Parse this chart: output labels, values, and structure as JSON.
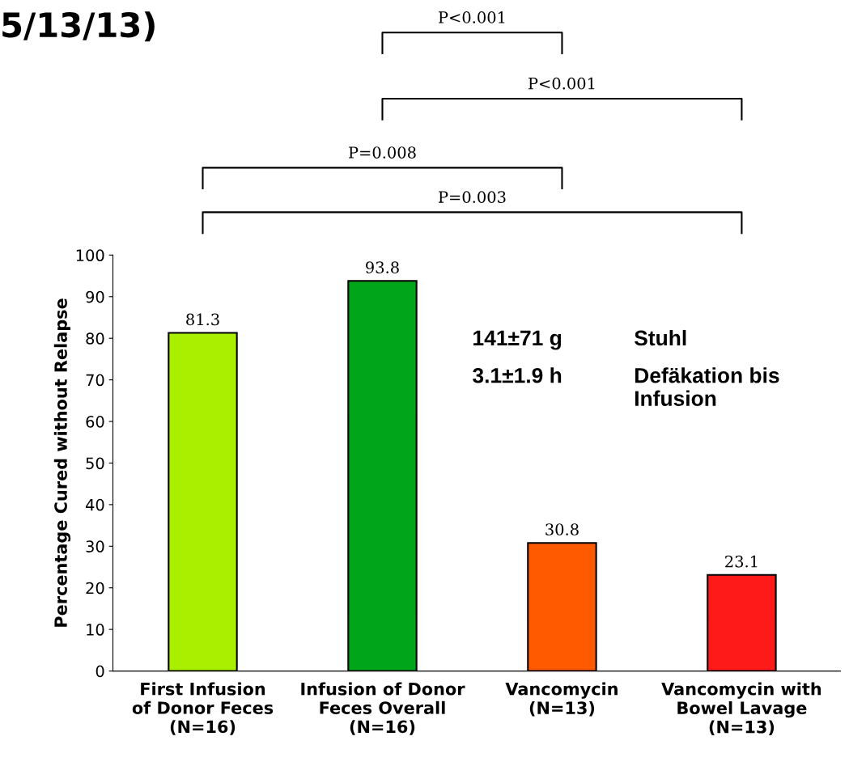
{
  "chart_data": {
    "type": "bar",
    "ylabel": "Percentage Cured without Relapse",
    "categories": [
      "First Infusion\nof Donor Feces\n(N=16)",
      "Infusion of Donor\nFeces Overall\n(N=16)",
      "Vancomycin\n(N=13)",
      "Vancomycin with\nBowel Lavage\n(N=13)"
    ],
    "values": [
      81.3,
      93.8,
      30.8,
      23.1
    ],
    "colors": [
      "#aaee00",
      "#00a51a",
      "#ff5a00",
      "#ff1a1a"
    ],
    "ylim": [
      0,
      100
    ],
    "yticks": [
      0,
      10,
      20,
      30,
      40,
      50,
      60,
      70,
      80,
      90,
      100
    ],
    "data_labels": true,
    "grid": false,
    "legend": false,
    "annotations": [
      "5/13/13)",
      "P<0.001",
      "P<0.001",
      "P=0.008",
      "P=0.003",
      "141±71 g",
      "Stuhl",
      "3.1±1.9 h",
      "Defäkation bis\nInfusion"
    ]
  }
}
